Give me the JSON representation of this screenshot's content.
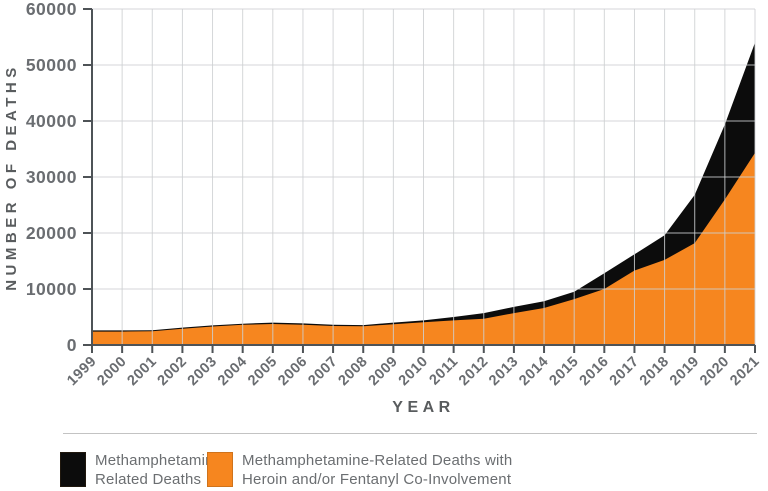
{
  "chart_data": {
    "type": "area",
    "title": "",
    "xlabel": "YEAR",
    "ylabel": "NUMBER OF DEATHS",
    "x": [
      "1999",
      "2000",
      "2001",
      "2002",
      "2003",
      "2004",
      "2005",
      "2006",
      "2007",
      "2008",
      "2009",
      "2010",
      "2011",
      "2012",
      "2013",
      "2014",
      "2015",
      "2016",
      "2017",
      "2018",
      "2019",
      "2020",
      "2021"
    ],
    "ylim": [
      0,
      60000
    ],
    "yticks": [
      0,
      10000,
      20000,
      30000,
      40000,
      50000,
      60000
    ],
    "grid": true,
    "legend_position": "bottom",
    "render_mode": "overlay-orange-over-black",
    "series": [
      {
        "name": "Methamphetamine Related Deaths",
        "color": "#0c0c0c",
        "values": [
          2600,
          2600,
          2650,
          3100,
          3500,
          3800,
          4000,
          3850,
          3600,
          3550,
          4000,
          4400,
          5000,
          5700,
          6800,
          7800,
          9500,
          12800,
          16200,
          19600,
          26800,
          39400,
          54000
        ]
      },
      {
        "name": "Methamphetamine-Related Deaths with Heroin and/or Fentanyl Co-Involvement",
        "color": "#f6861f",
        "values": [
          2400,
          2400,
          2450,
          2900,
          3300,
          3600,
          3750,
          3600,
          3400,
          3350,
          3700,
          4050,
          4400,
          4700,
          5700,
          6600,
          8200,
          10000,
          13300,
          15200,
          18200,
          26000,
          34300
        ]
      }
    ]
  },
  "legend": {
    "items": [
      {
        "swatch_color": "#0c0c0c",
        "label_line1": "Methamphetamine",
        "label_line2": "Related Deaths"
      },
      {
        "swatch_color": "#f6861f",
        "label_line1": "Methamphetamine-Related Deaths with",
        "label_line2": "Heroin and/or Fentanyl Co-Involvement"
      }
    ]
  },
  "colors": {
    "axis": "#4e5357",
    "grid": "#cdd0d2",
    "tick_text": "#6a6d71",
    "axis_title": "#595c5e",
    "legend_text": "#6b6e71",
    "divider": "#c3c3c3"
  }
}
